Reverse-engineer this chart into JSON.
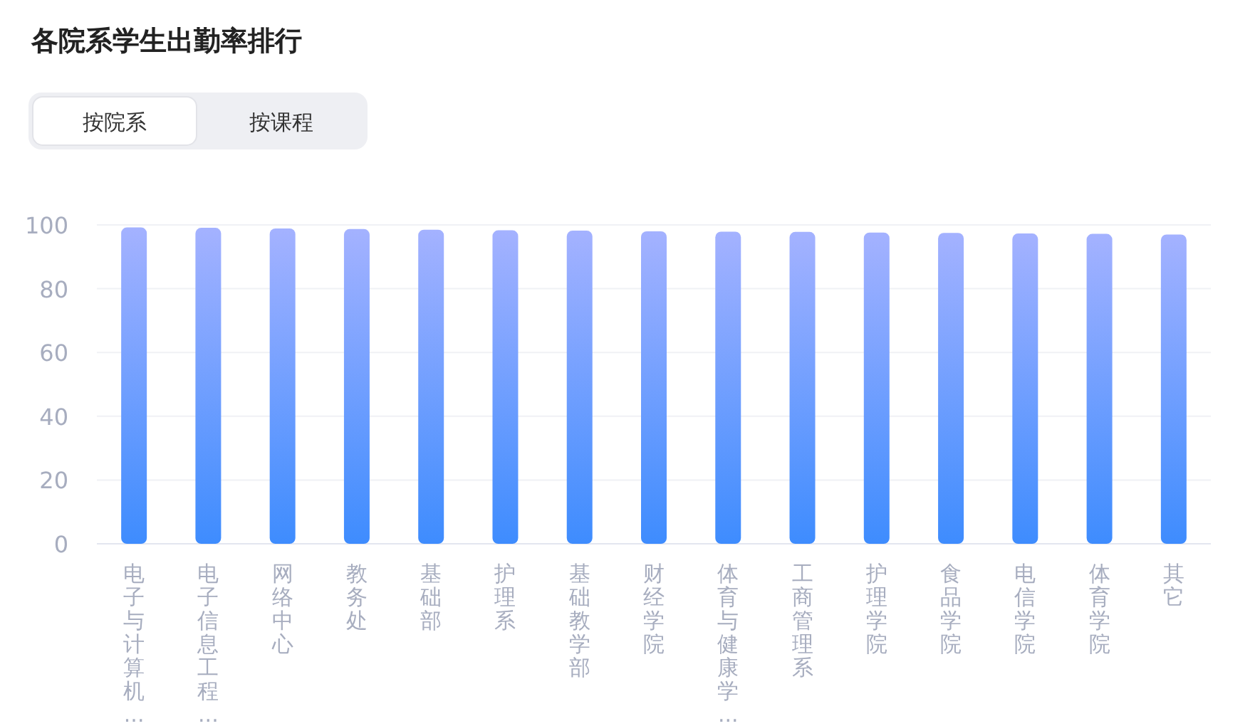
{
  "chart_data": {
    "type": "bar",
    "title": "各院系学生出勤率排行",
    "annotations": [
      "按院系",
      "按课程"
    ],
    "categories": [
      "电子与计算机...",
      "电子信息工程...",
      "网络中心",
      "教务处",
      "基础部",
      "护理系",
      "基础教学部",
      "财经学院",
      "体育与健康学...",
      "工商管理系",
      "护理学院",
      "食品学院",
      "电信学院",
      "体育学院",
      "其它"
    ],
    "series": [
      {
        "color": "#3e8cfe",
        "values": [
          99.2,
          99.1,
          98.9,
          98.7,
          98.5,
          98.3,
          98.2,
          98.0,
          97.9,
          97.8,
          97.6,
          97.5,
          97.3,
          97.2,
          97.0
        ]
      }
    ],
    "ylim": [
      0,
      100
    ],
    "yticks": [
      0,
      20,
      40,
      60,
      80,
      100
    ],
    "grid": "y"
  }
}
